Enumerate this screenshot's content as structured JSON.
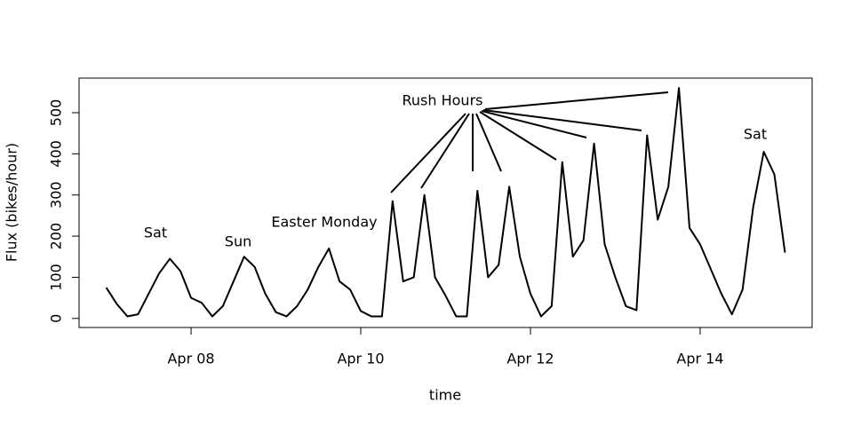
{
  "chart_data": {
    "type": "line",
    "x_label": "time",
    "y_label": "Flux (bikes/hour)",
    "x": [
      7,
      7.125,
      7.25,
      7.375,
      7.5,
      7.625,
      7.75,
      7.875,
      8,
      8.125,
      8.25,
      8.375,
      8.5,
      8.625,
      8.75,
      8.875,
      9,
      9.125,
      9.25,
      9.375,
      9.5,
      9.625,
      9.75,
      9.875,
      10,
      10.125,
      10.25,
      10.375,
      10.5,
      10.625,
      10.75,
      10.875,
      11,
      11.125,
      11.25,
      11.375,
      11.5,
      11.625,
      11.75,
      11.875,
      12,
      12.125,
      12.25,
      12.375,
      12.5,
      12.625,
      12.75,
      12.875,
      13,
      13.125,
      13.25,
      13.375,
      13.5,
      13.625,
      13.75,
      13.875,
      14,
      14.125,
      14.25,
      14.375,
      14.5,
      14.625,
      14.75,
      14.875,
      15
    ],
    "series": [
      {
        "color": "#000000",
        "values": [
          75,
          35,
          5,
          10,
          60,
          110,
          145,
          115,
          50,
          38,
          5,
          30,
          90,
          150,
          125,
          60,
          15,
          5,
          30,
          70,
          125,
          170,
          90,
          70,
          18,
          5,
          5,
          285,
          90,
          100,
          300,
          100,
          55,
          5,
          5,
          310,
          100,
          130,
          320,
          150,
          60,
          5,
          30,
          380,
          150,
          190,
          425,
          180,
          100,
          30,
          20,
          445,
          240,
          320,
          560,
          220,
          180,
          120,
          60,
          10,
          70,
          270,
          405,
          350,
          160
        ]
      }
    ],
    "xlim": [
      6.68,
      15.32
    ],
    "xticks": [
      {
        "value": 8,
        "label": "Apr 08"
      },
      {
        "value": 10,
        "label": "Apr 10"
      },
      {
        "value": 12,
        "label": "Apr 12"
      },
      {
        "value": 14,
        "label": "Apr 14"
      }
    ],
    "ylim": [
      -22,
      584
    ],
    "yticks": [
      0,
      100,
      200,
      300,
      400,
      500
    ],
    "annotations": [
      "Sat",
      "Sun",
      "Easter Monday",
      "Rush Hours",
      "Sat"
    ]
  }
}
